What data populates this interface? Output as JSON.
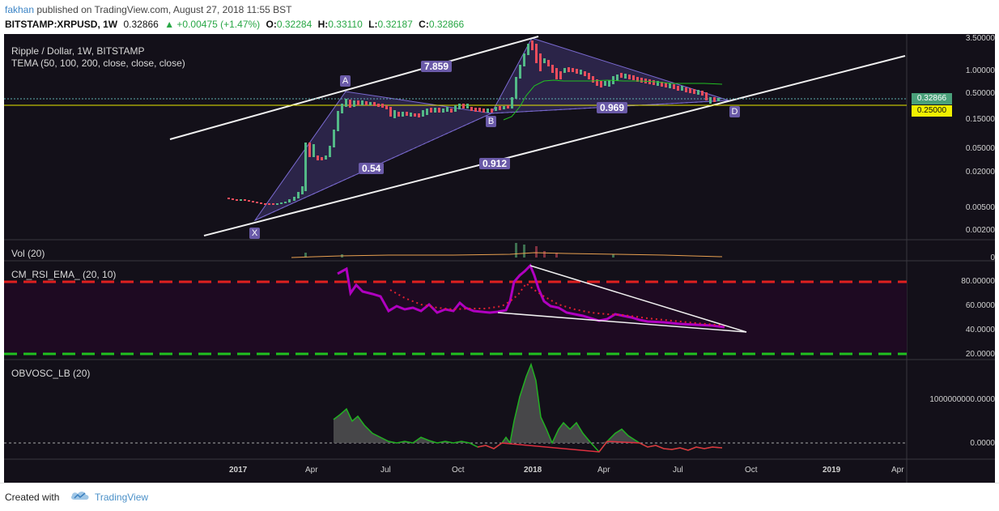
{
  "header": {
    "author": "fakhan",
    "published": "published on TradingView.com, August 27, 2018 11:55 BST",
    "symbol": "BITSTAMP:XRPUSD, 1W",
    "last": "0.32866",
    "change": "▲ +0.00475 (+1.47%)",
    "o_label": "O:",
    "o_val": "0.32284",
    "h_label": "H:",
    "h_val": "0.33110",
    "l_label": "L:",
    "l_val": "0.32187",
    "c_label": "C:",
    "c_val": "0.32866"
  },
  "main_pane": {
    "title": "Ripple / Dollar, 1W, BITSTAMP",
    "indicator": "TEMA (50, 100, 200, close, close, close)",
    "y_ticks": [
      "3.50000",
      "1.00000",
      "0.50000",
      "0.15000",
      "0.05000",
      "0.02000",
      "0.00500",
      "0.00200"
    ],
    "price_last": "0.32866",
    "price_level": "0.25000",
    "points": {
      "x": "X",
      "a": "A",
      "b": "B",
      "d": "D"
    },
    "ratios": {
      "xa_ab": "7.859",
      "xa": "0.54",
      "ab_bd": "0.969",
      "xd": "0.912"
    }
  },
  "vol_pane": {
    "title": "Vol (20)",
    "y_tick": "0"
  },
  "rsi_pane": {
    "title": "CM_RSI_EMA_ (20, 10)",
    "y_ticks": [
      "80.00000",
      "60.0000",
      "40.0000",
      "20.0000"
    ]
  },
  "obv_pane": {
    "title": "OBVOSC_LB (20)",
    "y_ticks": [
      "1000000000.0000",
      "0.0000"
    ]
  },
  "x_axis": [
    "2017",
    "Apr",
    "Jul",
    "Oct",
    "2018",
    "Apr",
    "Jul",
    "Oct",
    "2019",
    "Apr"
  ],
  "footer": {
    "created": "Created with",
    "brand": "TradingView"
  },
  "colors": {
    "background": "#131019",
    "candle_up": "#53b987",
    "candle_down": "#eb4d5c",
    "harmonic_fill": "#5a4aa0",
    "rsi": "#b000c0",
    "level_red": "#e02020",
    "level_green": "#20c020",
    "yellow_level": "#e8e800"
  }
}
